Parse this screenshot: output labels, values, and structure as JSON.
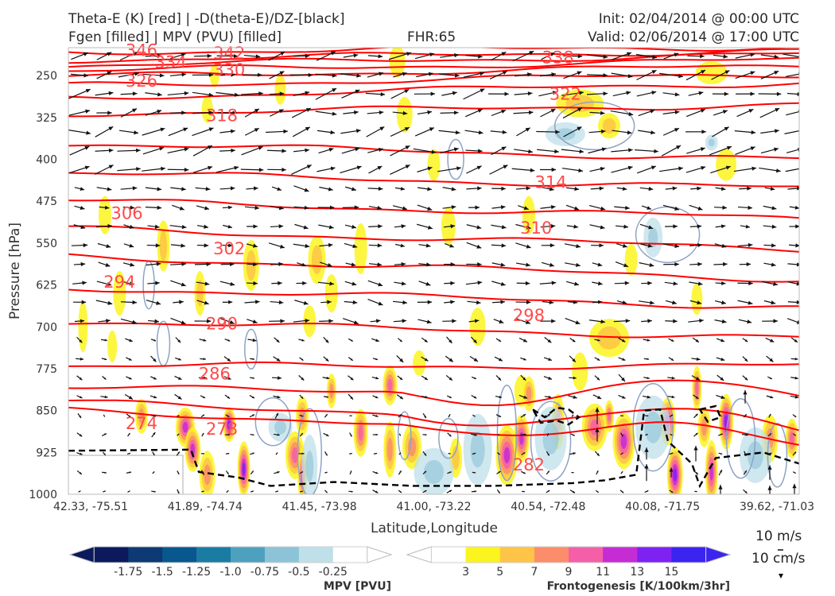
{
  "header": {
    "title_left_1": "Theta-E (K) [red] | -D(theta-E)/DZ-[black]",
    "title_left_2": "Fgen [filled] | MPV (PVU) [filled]",
    "fhr": "FHR:65",
    "init": "Init: 02/04/2014 @ 00:00 UTC",
    "valid": "Valid: 02/06/2014 @ 17:00 UTC"
  },
  "chart_data": {
    "type": "cross-section",
    "xlabel": "Latitude,Longitude",
    "ylabel": "Pressure [hPa]",
    "x_ticks": [
      "42.33, -75.51",
      "41.89, -74.74",
      "41.45, -73.98",
      "41.00, -73.22",
      "40.54, -72.48",
      "40.08, -71.75",
      "39.62, -71.03"
    ],
    "y_ticks": [
      250,
      325,
      400,
      475,
      550,
      625,
      700,
      775,
      850,
      925,
      1000
    ],
    "ylim": [
      1000,
      200
    ],
    "theta_e_contours": [
      {
        "label": "346",
        "y_left": 208,
        "y_right": 198,
        "label_at": [
          0.1,
          205
        ]
      },
      {
        "label": "342",
        "y_left": 222,
        "y_right": 205,
        "label_at": [
          0.22,
          210
        ]
      },
      {
        "label": "338",
        "y_left": 232,
        "y_right": 212,
        "label_at": [
          0.67,
          218
        ]
      },
      {
        "label": "334",
        "y_left": 242,
        "y_right": 222,
        "label_at": [
          0.14,
          226
        ]
      },
      {
        "label": "330",
        "y_left": 252,
        "y_right": 233,
        "label_at": [
          0.22,
          240
        ]
      },
      {
        "label": "326",
        "y_left": 268,
        "y_right": 247,
        "label_at": [
          0.1,
          260
        ]
      },
      {
        "label": "322",
        "y_left": 290,
        "y_right": 262,
        "label_at": [
          0.68,
          283
        ]
      },
      {
        "label": "318",
        "y_left": 318,
        "y_right": 302,
        "label_at": [
          0.21,
          322
        ]
      },
      {
        "label": "314",
        "y_left": 372,
        "y_right": 400,
        "label_at": [
          0.66,
          441
        ]
      },
      {
        "label": "310",
        "y_left": 424,
        "y_right": 452,
        "label_at": [
          0.64,
          523
        ]
      },
      {
        "label": "306",
        "y_left": 474,
        "y_right": 506,
        "label_at": [
          0.08,
          497
        ]
      },
      {
        "label": "302",
        "y_left": 524,
        "y_right": 560,
        "label_at": [
          0.22,
          560
        ]
      },
      {
        "label": "298",
        "y_left": 574,
        "y_right": 615,
        "label_at": [
          0.63,
          680
        ]
      },
      {
        "label": "294",
        "y_left": 630,
        "y_right": 665,
        "label_at": [
          0.07,
          620
        ]
      },
      {
        "label": "290",
        "y_left": 690,
        "y_right": 720,
        "label_at": [
          0.21,
          695
        ]
      },
      {
        "label": "286",
        "y_left": 770,
        "y_right": 770,
        "label_at": [
          0.2,
          784
        ]
      },
      {
        "label": "282",
        "y_left": 810,
        "y_right": 820,
        "label_at": [
          0.63,
          947
        ]
      },
      {
        "label": "278",
        "y_left": 835,
        "y_right": 875,
        "label_at": [
          0.21,
          883
        ]
      },
      {
        "label": "274",
        "y_left": 850,
        "y_right": 900,
        "label_at": [
          0.1,
          873
        ]
      }
    ],
    "frontogenesis_colorbar": {
      "label": "Frontogenesis [K/100km/3hr]",
      "ticks": [
        "3",
        "5",
        "7",
        "9",
        "11",
        "13",
        "15"
      ],
      "colors": [
        "#ffffff",
        "#fbf41e",
        "#fdc447",
        "#fc8d6a",
        "#f45fa7",
        "#c52cd4",
        "#7e22f2",
        "#3b23f0"
      ]
    },
    "mpv_colorbar": {
      "label": "MPV [PVU]",
      "ticks": [
        "-1.75",
        "-1.5",
        "-1.25",
        "-1.0",
        "-0.75",
        "-0.5",
        "-0.25"
      ],
      "colors": [
        "#0a1a5c",
        "#0d3a74",
        "#08588f",
        "#1a7ca3",
        "#4ea0bf",
        "#8cc3d7",
        "#bfdfe9",
        "#ffffff"
      ]
    },
    "vector_key": {
      "label_1": "10 m/s",
      "label_2": "10 cm/s"
    },
    "colors": {
      "theta_e": "#ff0000",
      "vectors": "#111111",
      "mpv_contour": "#8ea3c4"
    }
  }
}
